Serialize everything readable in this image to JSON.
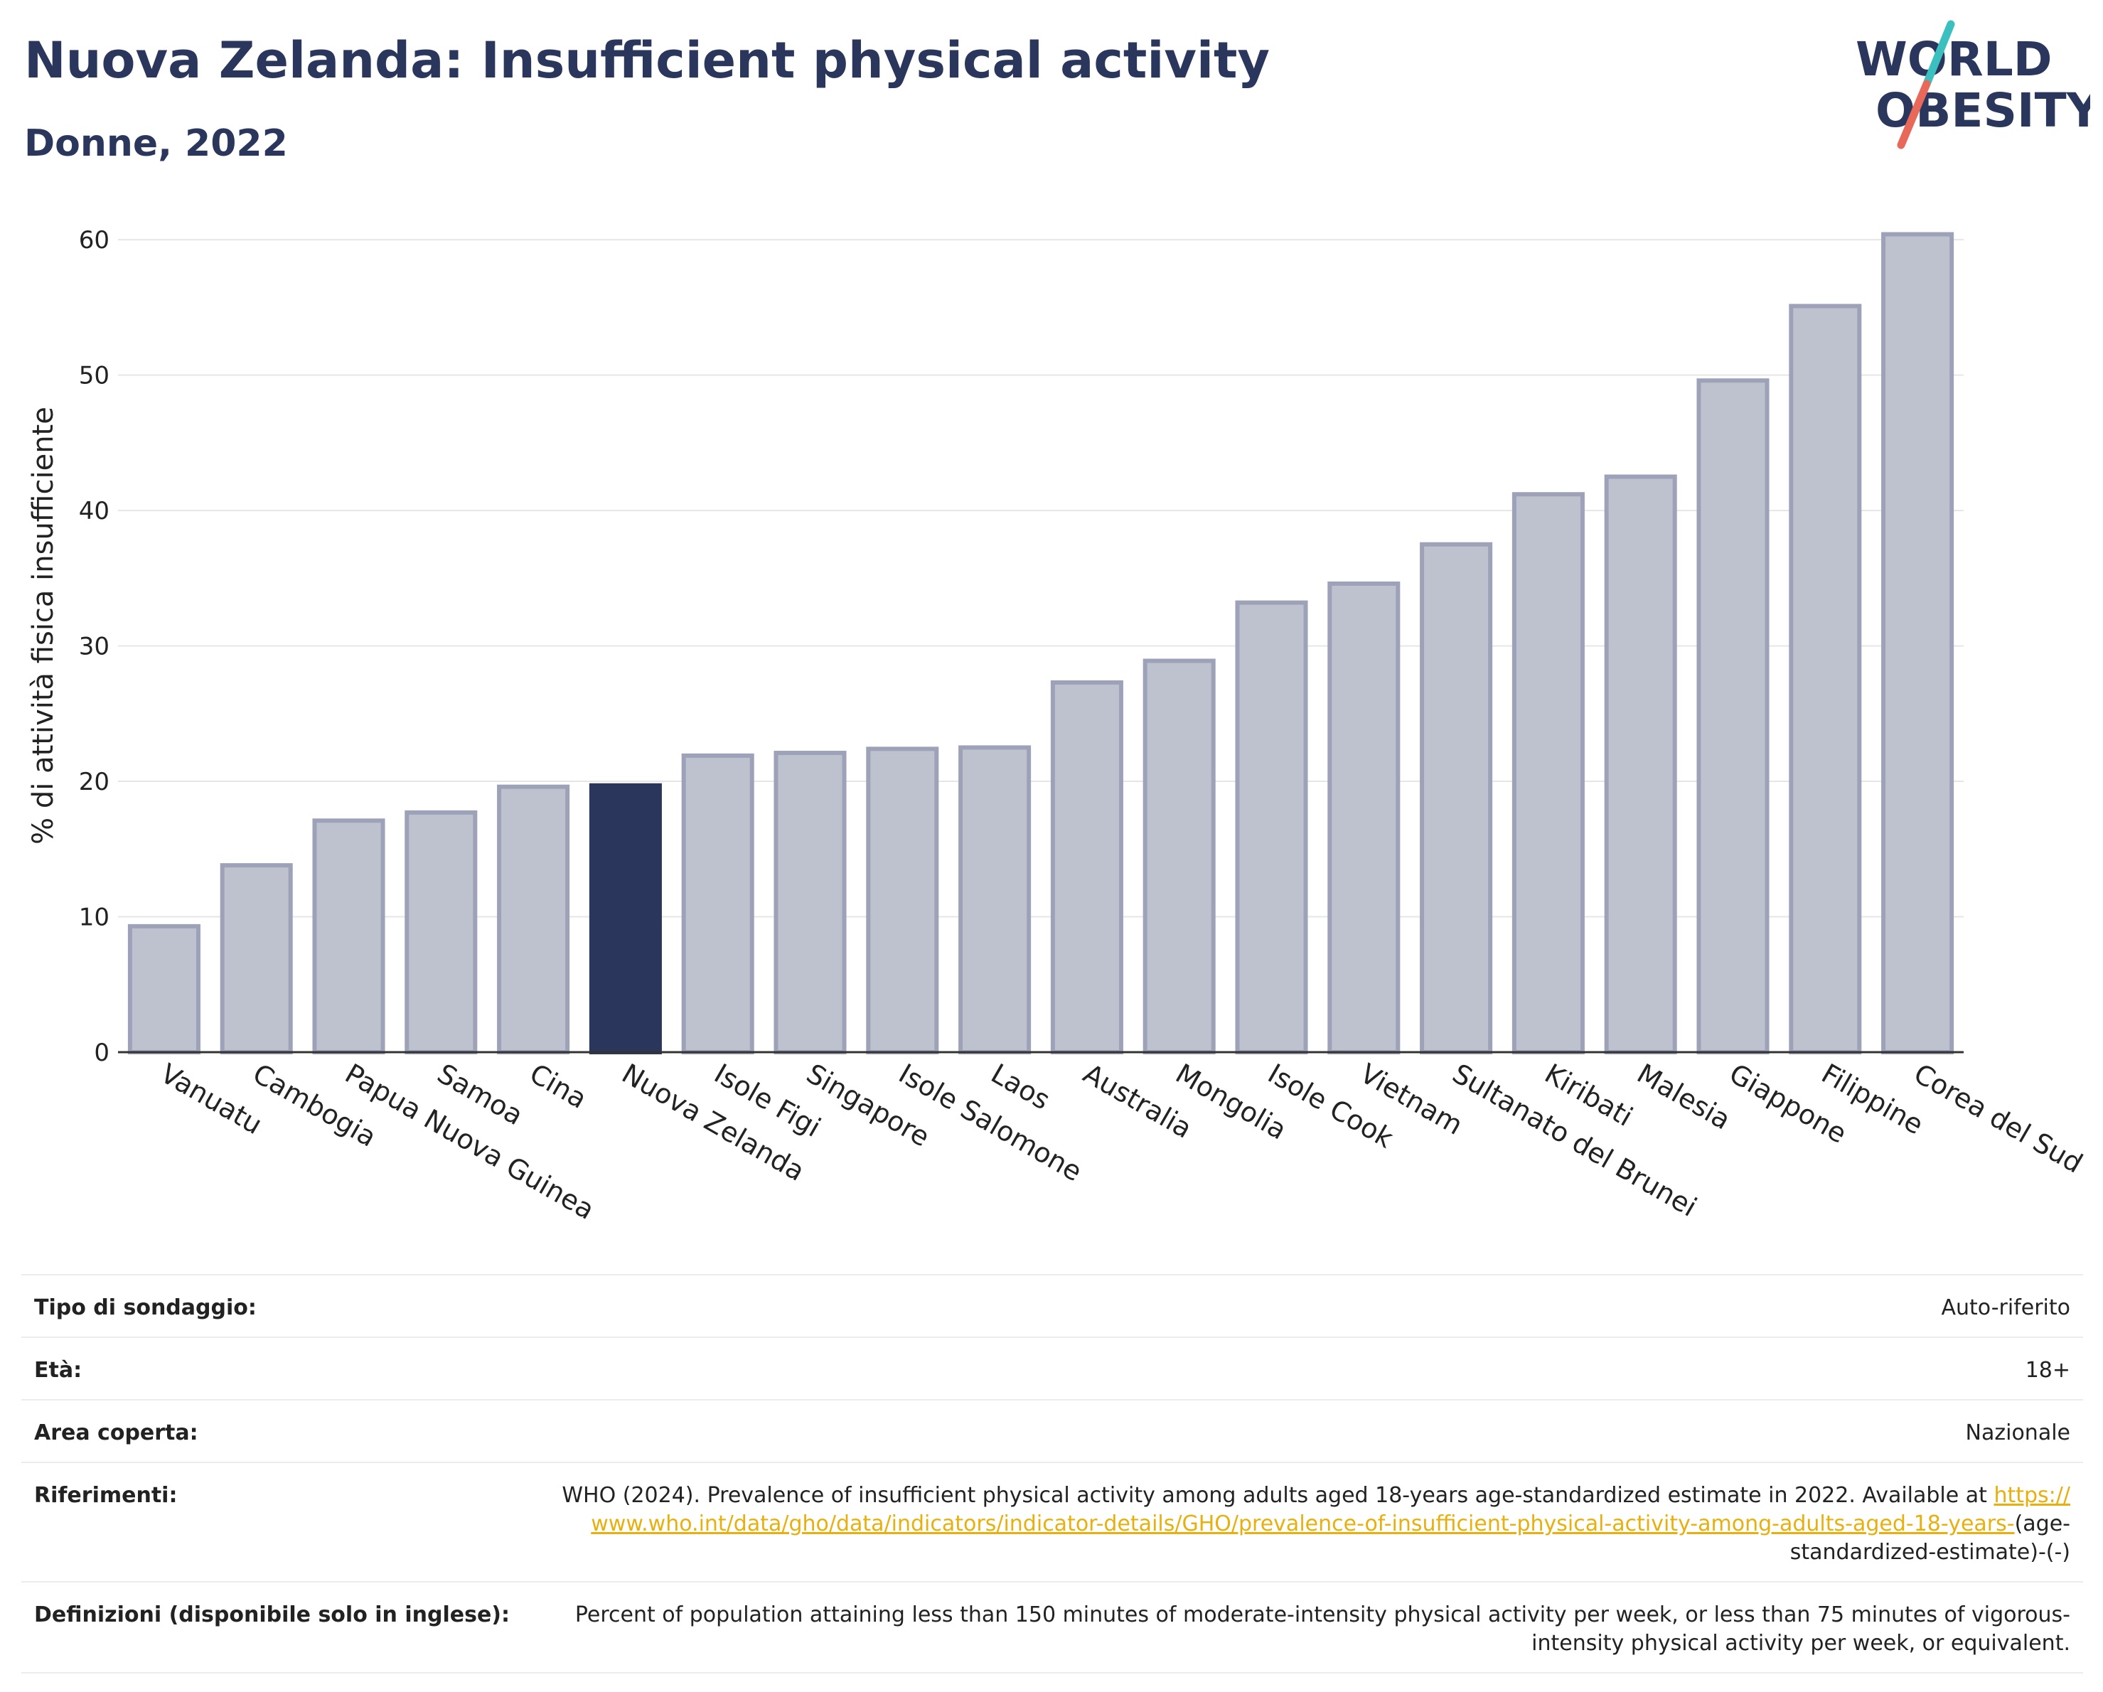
{
  "header": {
    "title": "Nuova Zelanda: Insufficient physical activity",
    "subtitle": "Donne, 2022"
  },
  "logo": {
    "line1": "WORLD",
    "line2": "OBESITY",
    "colors": {
      "text": "#2b365d",
      "slash_top": "#3bbfbf",
      "slash_bottom": "#e8685a"
    }
  },
  "chart_data": {
    "type": "bar",
    "title": "Nuova Zelanda: Insufficient physical activity",
    "subtitle": "Donne, 2022",
    "xlabel": "",
    "ylabel": "% di attività fisica insufficiente",
    "ylim": [
      0,
      63
    ],
    "yticks": [
      0,
      10,
      20,
      30,
      40,
      50,
      60
    ],
    "grid": true,
    "highlight": "Nuova Zelanda",
    "colors": {
      "bar": "#bec1ce",
      "bar_edge": "#9ea2b8",
      "highlight": "#2b365d",
      "grid": "#e6e6e6",
      "axis": "#333333"
    },
    "categories": [
      "Vanuatu",
      "Cambogia",
      "Papua Nuova Guinea",
      "Samoa",
      "Cina",
      "Nuova Zelanda",
      "Isole Figi",
      "Singapore",
      "Isole Salomone",
      "Laos",
      "Australia",
      "Mongolia",
      "Isole Cook",
      "Vietnam",
      "Sultanato del Brunei",
      "Kiribati",
      "Malesia",
      "Giappone",
      "Filippine",
      "Corea del Sud"
    ],
    "values": [
      9.3,
      13.8,
      17.1,
      17.7,
      19.6,
      19.7,
      21.9,
      22.1,
      22.4,
      22.5,
      27.3,
      28.9,
      33.2,
      34.6,
      37.5,
      41.2,
      42.5,
      49.6,
      55.1,
      60.4
    ]
  },
  "info": {
    "rows": [
      {
        "key": "Tipo di sondaggio:",
        "value": "Auto-riferito"
      },
      {
        "key": "Età:",
        "value": "18+"
      },
      {
        "key": "Area coperta:",
        "value": "Nazionale"
      }
    ],
    "references": {
      "key": "Riferimenti:",
      "text": "WHO (2024). Prevalence of insufficient physical activity among adults aged 18-years age-standardized estimate in 2022. Available at",
      "link": "https://www.who.int/data/gho/data/indicators/indicator-details/GHO/prevalence-of-insufficient-physical-activity-among-adults-aged-18-years-",
      "suffix": "(age-standardized-estimate)-(-)"
    },
    "definitions": {
      "key": "Definizioni (disponibile solo in inglese):",
      "value": "Percent of population attaining less than 150 minutes of moderate-intensity physical activity per week, or less than 75 minutes of vigorous-intensity physical activity per week, or equivalent."
    }
  }
}
